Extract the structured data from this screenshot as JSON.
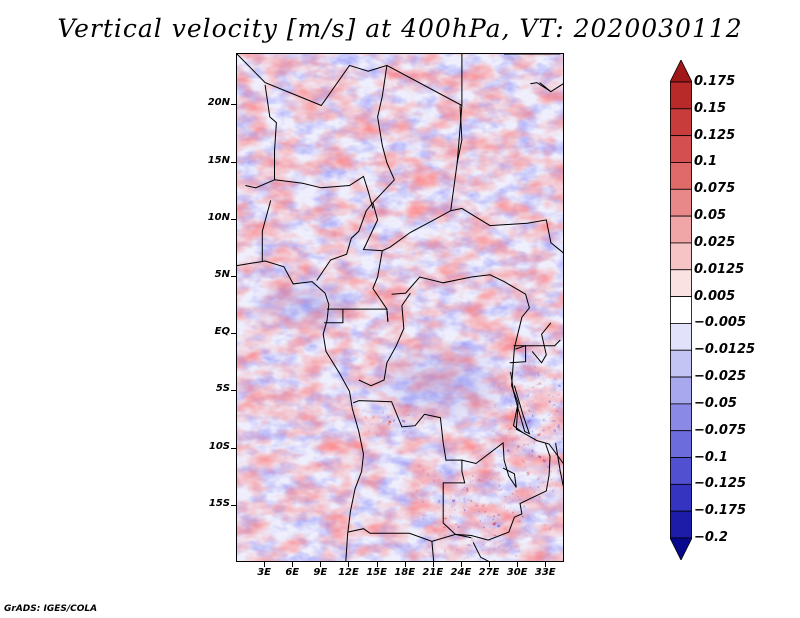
{
  "title": "Vertical velocity [m/s] at 400hPa, VT: 2020030112",
  "footer": "GrADS: IGES/COLA",
  "map": {
    "lon_range": [
      0,
      35
    ],
    "lat_range": [
      -20,
      24.5
    ],
    "y_ticks": [
      {
        "label": "20N",
        "lat": 20
      },
      {
        "label": "15N",
        "lat": 15
      },
      {
        "label": "10N",
        "lat": 10
      },
      {
        "label": "5N",
        "lat": 5
      },
      {
        "label": "EQ",
        "lat": 0
      },
      {
        "label": "5S",
        "lat": -5
      },
      {
        "label": "10S",
        "lat": -10
      },
      {
        "label": "15S",
        "lat": -15
      }
    ],
    "x_ticks": [
      {
        "label": "3E",
        "lon": 3
      },
      {
        "label": "6E",
        "lon": 6
      },
      {
        "label": "9E",
        "lon": 9
      },
      {
        "label": "12E",
        "lon": 12
      },
      {
        "label": "15E",
        "lon": 15
      },
      {
        "label": "18E",
        "lon": 18
      },
      {
        "label": "21E",
        "lon": 21
      },
      {
        "label": "24E",
        "lon": 24
      },
      {
        "label": "27E",
        "lon": 27
      },
      {
        "label": "30E",
        "lon": 30
      },
      {
        "label": "33E",
        "lon": 33
      }
    ]
  },
  "colorbar": {
    "levels": [
      "0.175",
      "0.15",
      "0.125",
      "0.1",
      "0.075",
      "0.05",
      "0.025",
      "0.0125",
      "0.005",
      "−0.005",
      "−0.0125",
      "−0.025",
      "−0.05",
      "−0.075",
      "−0.1",
      "−0.125",
      "−0.175",
      "−0.2"
    ],
    "colors": [
      "#a01818",
      "#b82a2a",
      "#c83c3c",
      "#d45050",
      "#e06a6a",
      "#e88888",
      "#f0a6a6",
      "#f6c4c4",
      "#fbe2e2",
      "#ffffff",
      "#e2e2fb",
      "#c4c4f4",
      "#a8a8ee",
      "#8a8ae6",
      "#6c6cdc",
      "#5050d0",
      "#3434c0",
      "#1c1ca8",
      "#08088e"
    ]
  }
}
